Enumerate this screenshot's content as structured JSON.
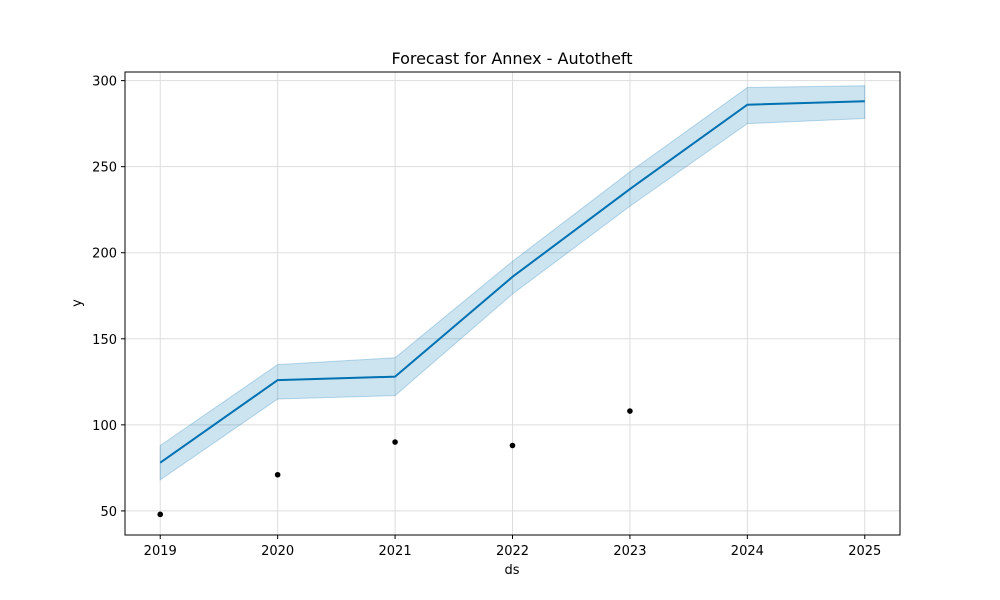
{
  "chart_data": {
    "type": "line",
    "title": "Forecast for Annex - Autotheft",
    "xlabel": "ds",
    "ylabel": "y",
    "xlim": [
      2018.7,
      2025.3
    ],
    "ylim": [
      36,
      305
    ],
    "grid": true,
    "x_ticks": [
      2019,
      2020,
      2021,
      2022,
      2023,
      2024,
      2025
    ],
    "x_tick_labels": [
      "2019",
      "2020",
      "2021",
      "2022",
      "2023",
      "2024",
      "2025"
    ],
    "y_ticks": [
      50,
      100,
      150,
      200,
      250,
      300
    ],
    "y_tick_labels": [
      "50",
      "100",
      "150",
      "200",
      "250",
      "300"
    ],
    "series": [
      {
        "name": "forecast",
        "kind": "line",
        "x": [
          2019,
          2020,
          2021,
          2022,
          2023,
          2024,
          2025
        ],
        "values": [
          78,
          126,
          128,
          186,
          237,
          286,
          288
        ]
      },
      {
        "name": "uncertainty interval",
        "kind": "band",
        "x": [
          2019,
          2020,
          2021,
          2022,
          2023,
          2024,
          2025
        ],
        "lower": [
          68,
          115,
          117,
          176,
          227,
          275,
          278
        ],
        "upper": [
          88,
          135,
          139,
          195,
          247,
          296,
          297
        ]
      },
      {
        "name": "observed",
        "kind": "scatter",
        "x": [
          2019,
          2020,
          2021,
          2022,
          2023
        ],
        "values": [
          48,
          71,
          90,
          88,
          108
        ]
      }
    ],
    "colors": {
      "line": "#0072b2",
      "band": "#0072b2",
      "points": "#000000",
      "grid": "#dddddd",
      "frame": "#000000"
    }
  }
}
